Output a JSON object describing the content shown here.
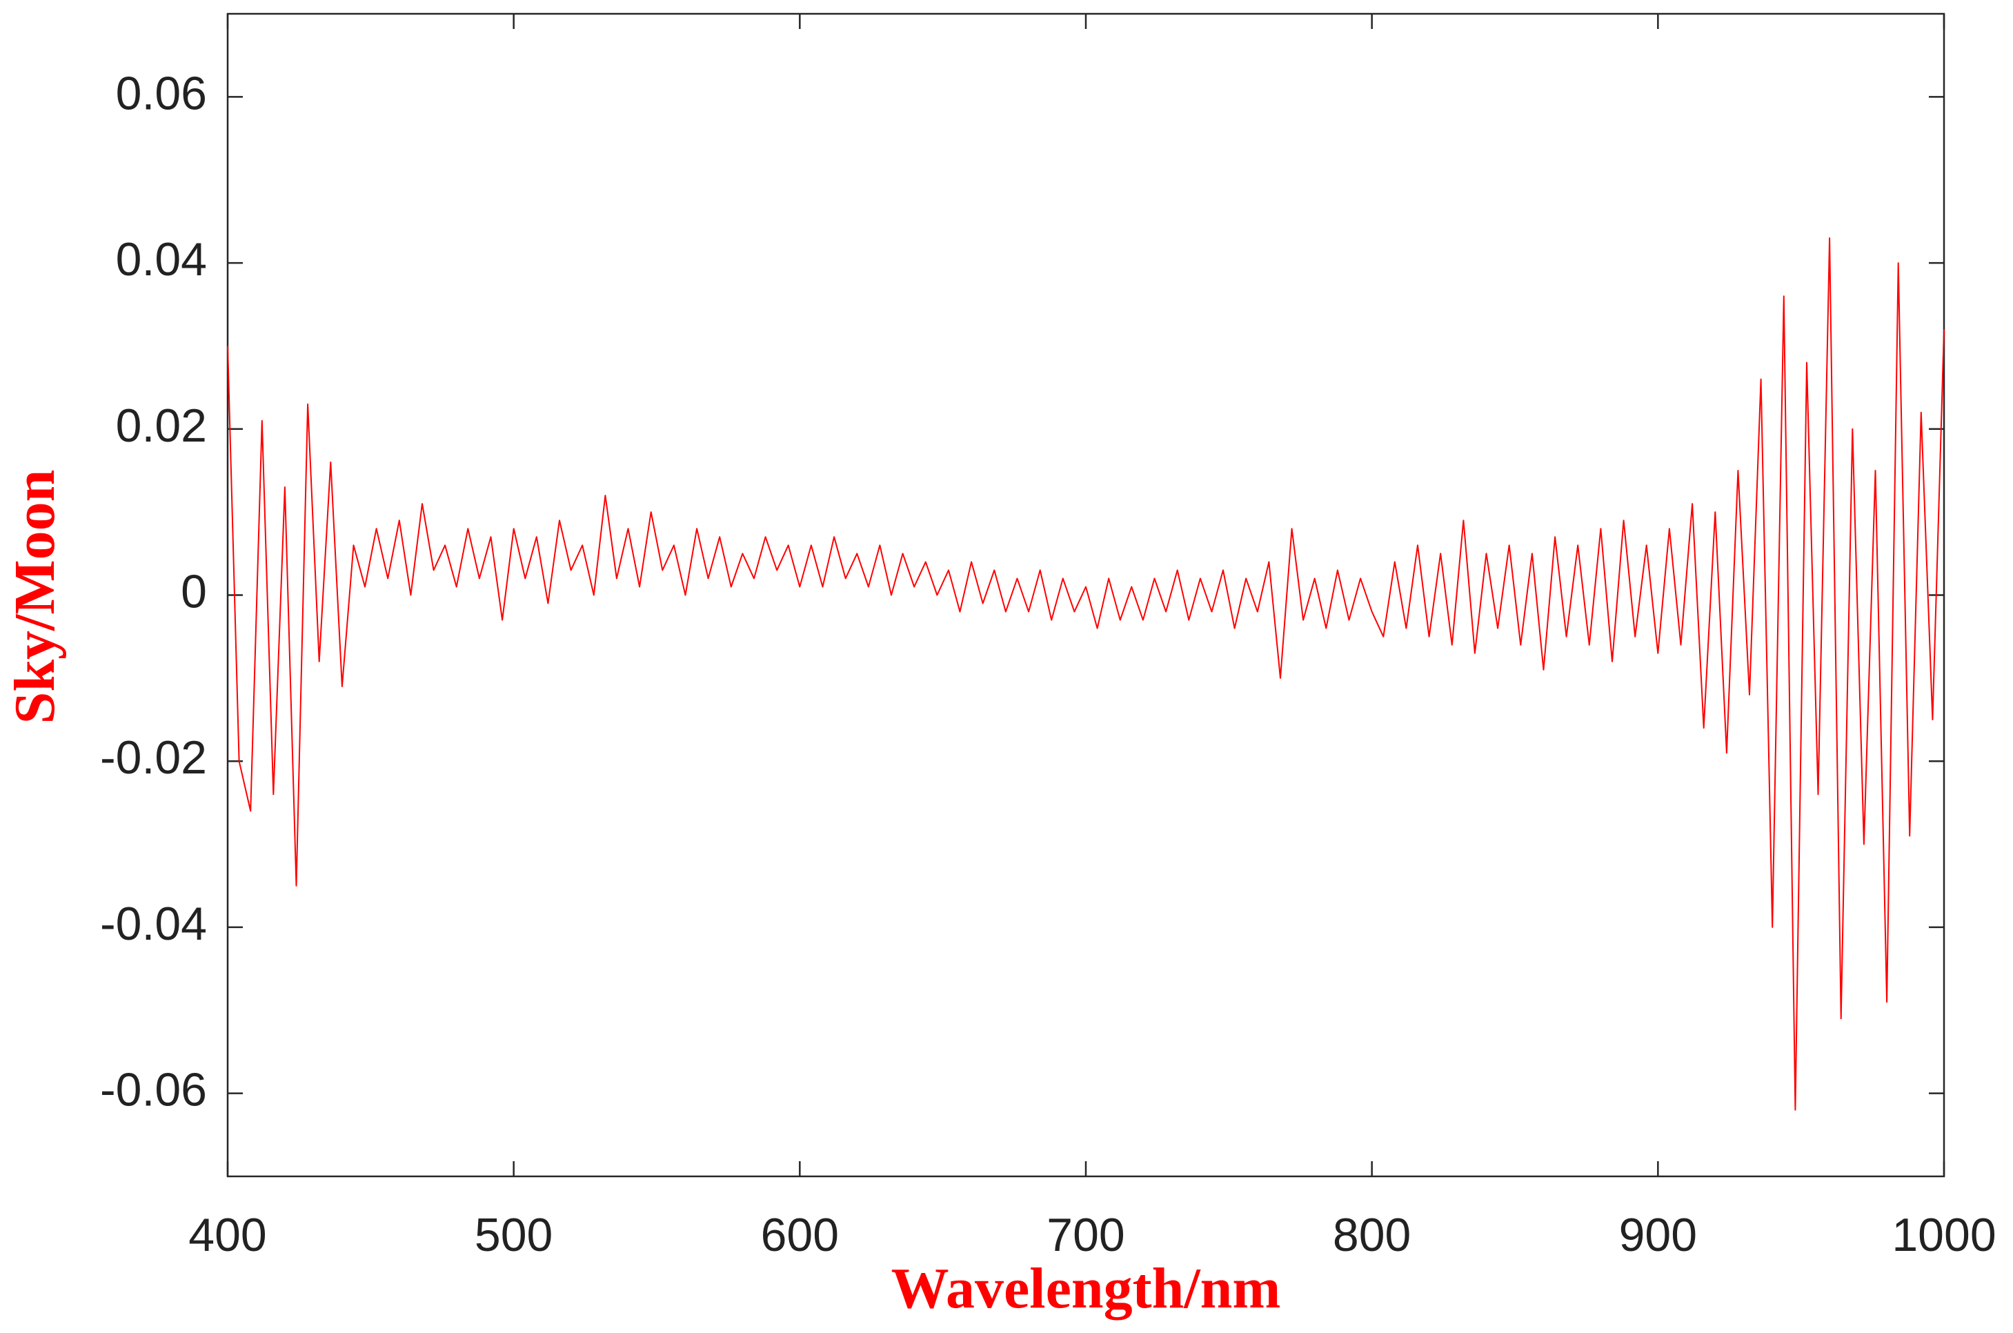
{
  "chart_data": {
    "type": "line",
    "xlabel": "Wavelength/nm",
    "ylabel": "Sky/Moon",
    "color": "#ff0000",
    "xlim": [
      400,
      1000
    ],
    "xticks": [
      400,
      500,
      600,
      700,
      800,
      900,
      1000
    ],
    "ylim": [
      -0.07,
      0.07
    ],
    "yticks": [
      -0.06,
      -0.04,
      -0.02,
      0,
      0.02,
      0.04,
      0.06
    ],
    "x": [
      400,
      404,
      408,
      412,
      416,
      420,
      424,
      428,
      432,
      436,
      440,
      444,
      448,
      452,
      456,
      460,
      464,
      468,
      472,
      476,
      480,
      484,
      488,
      492,
      496,
      500,
      504,
      508,
      512,
      516,
      520,
      524,
      528,
      532,
      536,
      540,
      544,
      548,
      552,
      556,
      560,
      564,
      568,
      572,
      576,
      580,
      584,
      588,
      592,
      596,
      600,
      604,
      608,
      612,
      616,
      620,
      624,
      628,
      632,
      636,
      640,
      644,
      648,
      652,
      656,
      660,
      664,
      668,
      672,
      676,
      680,
      684,
      688,
      692,
      696,
      700,
      704,
      708,
      712,
      716,
      720,
      724,
      728,
      732,
      736,
      740,
      744,
      748,
      752,
      756,
      760,
      764,
      768,
      772,
      776,
      780,
      784,
      788,
      792,
      796,
      800,
      804,
      808,
      812,
      816,
      820,
      824,
      828,
      832,
      836,
      840,
      844,
      848,
      852,
      856,
      860,
      864,
      868,
      872,
      876,
      880,
      884,
      888,
      892,
      896,
      900,
      904,
      908,
      912,
      916,
      920,
      924,
      928,
      932,
      936,
      940,
      944,
      948,
      952,
      956,
      960,
      964,
      968,
      972,
      976,
      980,
      984,
      988,
      992,
      996,
      1000
    ],
    "values": [
      0.03,
      -0.02,
      -0.026,
      0.021,
      -0.024,
      0.013,
      -0.035,
      0.023,
      -0.008,
      0.016,
      -0.011,
      0.006,
      0.001,
      0.008,
      0.002,
      0.009,
      0.0,
      0.011,
      0.003,
      0.006,
      0.001,
      0.008,
      0.002,
      0.007,
      -0.003,
      0.008,
      0.002,
      0.007,
      -0.001,
      0.009,
      0.003,
      0.006,
      0.0,
      0.012,
      0.002,
      0.008,
      0.001,
      0.01,
      0.003,
      0.006,
      0.0,
      0.008,
      0.002,
      0.007,
      0.001,
      0.005,
      0.002,
      0.007,
      0.003,
      0.006,
      0.001,
      0.006,
      0.001,
      0.007,
      0.002,
      0.005,
      0.001,
      0.006,
      0.0,
      0.005,
      0.001,
      0.004,
      0.0,
      0.003,
      -0.002,
      0.004,
      -0.001,
      0.003,
      -0.002,
      0.002,
      -0.002,
      0.003,
      -0.003,
      0.002,
      -0.002,
      0.001,
      -0.004,
      0.002,
      -0.003,
      0.001,
      -0.003,
      0.002,
      -0.002,
      0.003,
      -0.003,
      0.002,
      -0.002,
      0.003,
      -0.004,
      0.002,
      -0.002,
      0.004,
      -0.01,
      0.008,
      -0.003,
      0.002,
      -0.004,
      0.003,
      -0.003,
      0.002,
      -0.002,
      -0.005,
      0.004,
      -0.004,
      0.006,
      -0.005,
      0.005,
      -0.006,
      0.009,
      -0.007,
      0.005,
      -0.004,
      0.006,
      -0.006,
      0.005,
      -0.009,
      0.007,
      -0.005,
      0.006,
      -0.006,
      0.008,
      -0.008,
      0.009,
      -0.005,
      0.006,
      -0.007,
      0.008,
      -0.006,
      0.011,
      -0.016,
      0.01,
      -0.019,
      0.015,
      -0.012,
      0.026,
      -0.04,
      0.036,
      -0.062,
      0.028,
      -0.024,
      0.043,
      -0.051,
      0.02,
      -0.03,
      0.015,
      -0.049,
      0.04,
      -0.029,
      0.022,
      -0.015,
      0.032
    ]
  }
}
